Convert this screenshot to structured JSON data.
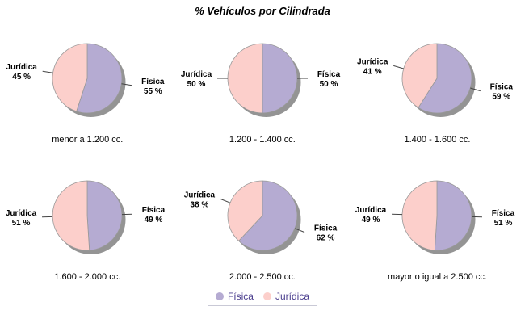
{
  "title": "% Vehículos por Cilindrada",
  "colors": {
    "fisica": "#b5abd2",
    "juridica": "#fccfcb",
    "shadow": "#949494",
    "slice_outline": "#999999",
    "leader_line": "#444444",
    "label_text": "#000000",
    "legend_text": "#4b3e8e",
    "legend_border": "#c9c9d6"
  },
  "legend": {
    "position": "bottom"
  },
  "chart_data": {
    "type": "pie",
    "title": "% Vehículos por Cilindrada",
    "series_names": [
      "Física",
      "Jurídica"
    ],
    "legend_position": "bottom",
    "unit": "%",
    "charts": [
      {
        "caption": "menor a 1.200 cc.",
        "fisica": 55,
        "juridica": 45
      },
      {
        "caption": "1.200 - 1.400 cc.",
        "fisica": 50,
        "juridica": 50
      },
      {
        "caption": "1.400 - 1.600 cc.",
        "fisica": 59,
        "juridica": 41
      },
      {
        "caption": "1.600 - 2.000 cc.",
        "fisica": 49,
        "juridica": 51
      },
      {
        "caption": "2.000 - 2.500 cc.",
        "fisica": 62,
        "juridica": 38
      },
      {
        "caption": "mayor o igual a 2.500 cc.",
        "fisica": 51,
        "juridica": 49
      }
    ]
  }
}
